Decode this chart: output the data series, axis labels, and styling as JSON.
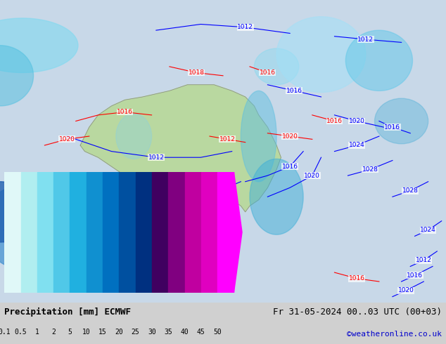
{
  "title_left": "Precipitation [mm] ECMWF",
  "title_right": "Fr 31-05-2024 00..03 UTC (00+03)",
  "watermark": "©weatheronline.co.uk",
  "colorbar_values": [
    0.1,
    0.5,
    1,
    2,
    5,
    10,
    15,
    20,
    25,
    30,
    35,
    40,
    45,
    50
  ],
  "colorbar_colors": [
    "#e0f8f8",
    "#b0eef0",
    "#80e0f0",
    "#50c8e8",
    "#20b0e0",
    "#1090d0",
    "#0070c0",
    "#0050a0",
    "#003080",
    "#400060",
    "#800080",
    "#c000a0",
    "#e000c0",
    "#ff00ff"
  ],
  "bg_color": "#d0d0d0",
  "map_bg": "#c8c8c8",
  "fig_width": 6.34,
  "fig_height": 4.9
}
